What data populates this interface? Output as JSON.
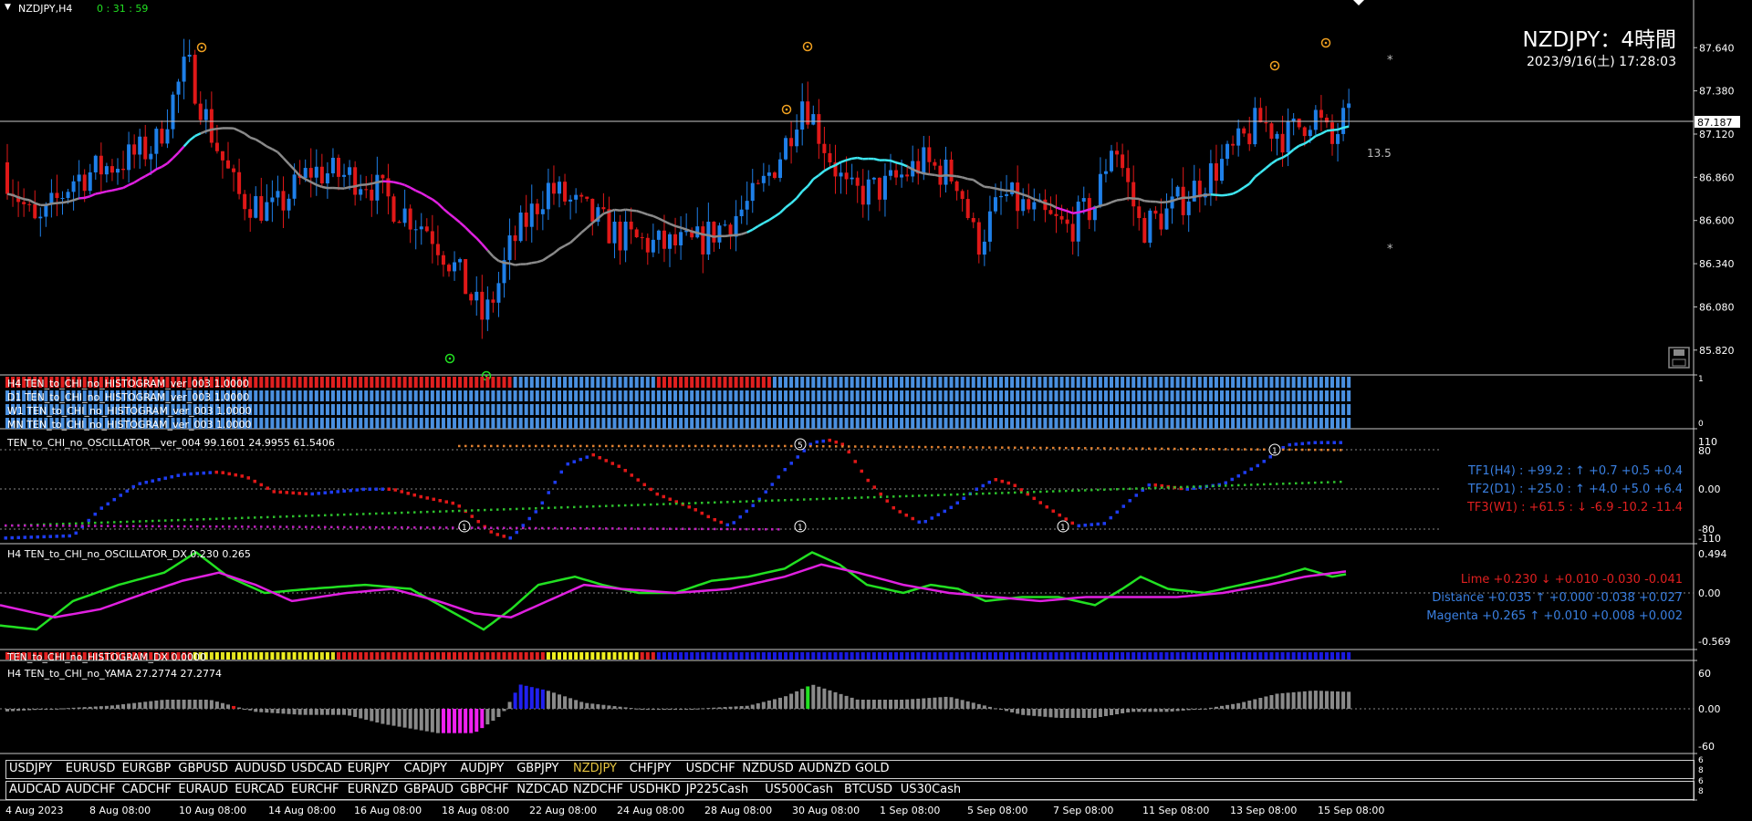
{
  "window_title": "NZDJPY,H4",
  "countdown": "0 : 31 : 59",
  "header": {
    "symbol_title": "NZDJPY：4時間",
    "timestamp": "2023/9/16(土) 17:28:03"
  },
  "price_axis": {
    "labels": [
      "87.640",
      "87.380",
      "87.120",
      "86.860",
      "86.600",
      "86.340",
      "86.080",
      "85.820"
    ],
    "current_price": "87.187",
    "range": [
      85.72,
      87.85
    ]
  },
  "annotations": {
    "spread_value": "13.5",
    "marker_glyph": "*"
  },
  "histogram_rows": [
    "H4 TEN_to_CHI_no_HISTOGRAM_ver_003 1.0000",
    "D1 TEN_to_CHI_no_HISTOGRAM_ver_003 1.0000",
    "W1 TEN_to_CHI_no_HISTOGRAM_ver_003 1.0000",
    "MN TEN_to_CHI_no_HISTOGRAM_ver_003 1.0000"
  ],
  "histogram_side_values": [
    "1",
    "0"
  ],
  "oscillator": {
    "title": "TEN_to_CHI_no_OSCILLATOR__ver_004 99.1601 24.9955 61.5406",
    "axis": [
      "110",
      "80",
      "0.00",
      "-80",
      "-110"
    ],
    "tf_lines": [
      {
        "text": "TF1(H4) : +99.2 : ↑ +0.7 +0.5 +0.4",
        "color": "#3a7fe0"
      },
      {
        "text": "TF2(D1) : +25.0 : ↑ +4.0 +5.0 +6.4",
        "color": "#3a7fe0"
      },
      {
        "text": "TF3(W1) : +61.5 : ↓ -6.9 -10.2 -11.4",
        "color": "#e02020"
      }
    ],
    "circle_markers": [
      "1",
      "5",
      "1",
      "1",
      "1"
    ]
  },
  "oscillator_dx": {
    "title": "H4 TEN_to_CHI_no_OSCILLATOR_DX  0.230  0.265",
    "axis": [
      "0.494",
      "0.00",
      "-0.569"
    ],
    "lines": [
      {
        "text": "Lime +0.230 ↓ +0.010 -0.030 -0.041",
        "color": "#e02020"
      },
      {
        "text": "Distance +0.035 ↑ +0.000 -0.038 +0.027",
        "color": "#3a7fe0"
      },
      {
        "text": "Magenta +0.265 ↑ +0.010 +0.008 +0.002",
        "color": "#3a7fe0"
      }
    ]
  },
  "histogram_dx": {
    "title": "TEN_to_CHI_no_HISTOGRAM_DX 0.0000"
  },
  "yama": {
    "title": "H4  TEN_to_CHI_no_YAMA  27.2774  27.2774",
    "axis": [
      "60",
      "0.00",
      "-60"
    ]
  },
  "symbols_row1": [
    "USDJPY",
    "EURUSD",
    "EURGBP",
    "GBPUSD",
    "AUDUSD",
    "USDCAD",
    "EURJPY",
    "CADJPY",
    "AUDJPY",
    "GBPJPY",
    "NZDJPY",
    "CHFJPY",
    "USDCHF",
    "NZDUSD",
    "AUDNZD",
    "GOLD"
  ],
  "symbols_row2": [
    "AUDCAD",
    "AUDCHF",
    "CADCHF",
    "EURAUD",
    "EURCAD",
    "EURCHF",
    "EURNZD",
    "GBPAUD",
    "GBPCHF",
    "NZDCAD",
    "NZDCHF",
    "USDHKD",
    "JP225Cash",
    "US500Cash",
    "BTCUSD",
    "US30Cash"
  ],
  "active_symbol": "NZDJPY",
  "symbol_row_side_values": [
    "6",
    "8",
    "6",
    "8"
  ],
  "time_axis": [
    "4 Aug 2023",
    "8 Aug 08:00",
    "10 Aug 08:00",
    "14 Aug 08:00",
    "16 Aug 08:00",
    "18 Aug 08:00",
    "22 Aug 08:00",
    "24 Aug 08:00",
    "28 Aug 08:00",
    "30 Aug 08:00",
    "1 Sep 08:00",
    "5 Sep 08:00",
    "7 Sep 08:00",
    "11 Sep 08:00",
    "13 Sep 08:00",
    "15 Sep 08:00"
  ],
  "colors": {
    "bull": "#1e7fe8",
    "bear": "#e01818",
    "ma_gray": "#8a8a8a",
    "ma_magenta": "#e020e0",
    "ma_cyan": "#3ee6f0",
    "lime": "#22e022",
    "signal_orange": "#f0a020",
    "active_symbol": "#e6c440"
  }
}
